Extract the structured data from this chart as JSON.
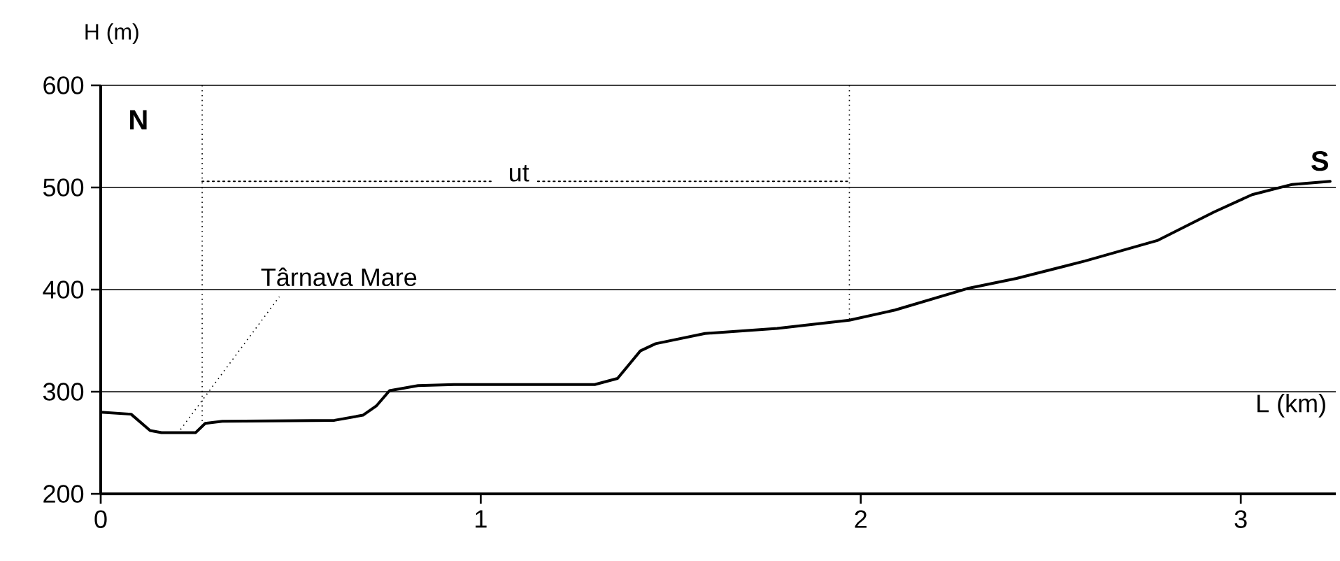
{
  "chart_data": {
    "type": "line",
    "xlabel": "L (km)",
    "ylabel": "H (m)",
    "xlim": [
      0,
      3.25
    ],
    "ylim": [
      200,
      600
    ],
    "xticks": [
      0,
      1,
      2,
      3
    ],
    "yticks": [
      200,
      300,
      400,
      500,
      600
    ],
    "grid": "y",
    "marker": "none",
    "line_style": "solid",
    "series": [
      {
        "color": "#000000",
        "x": [
          0,
          0.08,
          0.13,
          0.16,
          0.25,
          0.275,
          0.32,
          0.615,
          0.69,
          0.725,
          0.76,
          0.835,
          0.93,
          1.3,
          1.36,
          1.42,
          1.46,
          1.59,
          1.78,
          1.97,
          2.09,
          2.28,
          2.41,
          2.59,
          2.78,
          2.93,
          3.03,
          3.135,
          3.235
        ],
        "values": [
          280,
          278,
          262,
          260,
          260,
          269,
          271,
          272,
          277,
          286,
          301,
          306,
          307,
          307,
          313,
          340,
          347,
          357,
          362,
          370,
          380,
          401,
          411,
          428,
          448,
          476,
          493,
          503,
          506
        ]
      },
      {
        "name": "ut",
        "color": "#000000",
        "line_style": "dotted",
        "x": [
          0.267,
          1.03,
          1.1,
          1.15,
          1.97
        ],
        "values": [
          506,
          506,
          null,
          506,
          506
        ]
      }
    ],
    "ref_lines": [
      {
        "axis": "x",
        "value": 0.267,
        "line_style": "dotted"
      },
      {
        "axis": "x",
        "value": 1.97,
        "line_style": "dotted"
      }
    ],
    "annotations": [
      "N",
      "S",
      {
        "text": "Târnava Mare",
        "x": 0.21,
        "y": 263
      }
    ]
  }
}
